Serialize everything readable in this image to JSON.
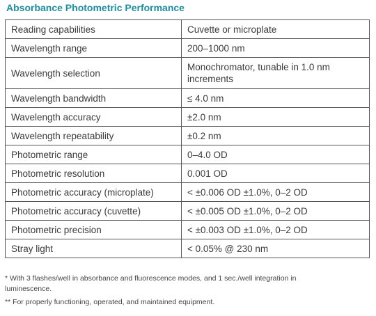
{
  "header": {
    "title": "Absorbance Photometric Performance"
  },
  "table": {
    "rows": [
      [
        "Reading capabilities",
        "Cuvette or microplate"
      ],
      [
        "Wavelength range",
        "200–1000 nm"
      ],
      [
        "Wavelength selection",
        "Monochromator, tunable in 1.0 nm increments"
      ],
      [
        "Wavelength bandwidth",
        "≤ 4.0 nm"
      ],
      [
        "Wavelength accuracy",
        "±2.0 nm"
      ],
      [
        "Wavelength repeatability",
        "±0.2 nm"
      ],
      [
        "Photometric range",
        "0–4.0 OD"
      ],
      [
        "Photometric resolution",
        "0.001 OD"
      ],
      [
        "Photometric accuracy (microplate)",
        "< ±0.006 OD ±1.0%, 0–2 OD"
      ],
      [
        "Photometric accuracy (cuvette)",
        "< ±0.005 OD ±1.0%, 0–2 OD"
      ],
      [
        "Photometric precision",
        "< ±0.003 OD ±1.0%, 0–2 OD"
      ],
      [
        "Stray light",
        "< 0.05% @ 230 nm"
      ]
    ]
  },
  "footnotes": [
    "* With 3 flashes/well in absorbance and fluorescence modes, and 1 sec./well integration in luminescence.",
    "** For properly functioning, operated, and maintained equipment."
  ]
}
